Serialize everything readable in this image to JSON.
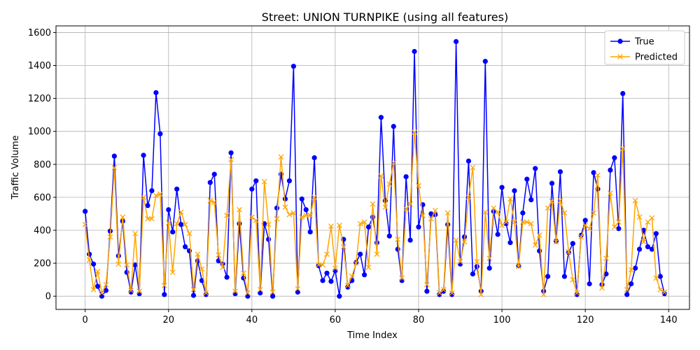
{
  "chart_data": {
    "type": "line",
    "title": "Street: UNION TURNPIKE (using all features)",
    "xlabel": "Time Index",
    "ylabel": "Traffic Volume",
    "xlim": [
      -7,
      145
    ],
    "ylim": [
      -80,
      1640
    ],
    "xticks": [
      0,
      20,
      40,
      60,
      80,
      100,
      120,
      140
    ],
    "yticks": [
      0,
      200,
      400,
      600,
      800,
      1000,
      1200,
      1400,
      1600
    ],
    "grid": true,
    "legend_position": "top-right",
    "series": [
      {
        "name": "True",
        "color": "#0000ff",
        "marker": "circle",
        "values": [
          515,
          255,
          195,
          60,
          0,
          35,
          395,
          850,
          245,
          455,
          145,
          25,
          190,
          15,
          855,
          550,
          640,
          1235,
          985,
          10,
          525,
          390,
          650,
          435,
          300,
          275,
          5,
          215,
          95,
          10,
          690,
          740,
          215,
          195,
          115,
          870,
          15,
          440,
          110,
          0,
          650,
          700,
          20,
          440,
          345,
          0,
          535,
          740,
          590,
          700,
          1395,
          25,
          590,
          525,
          390,
          840,
          185,
          95,
          140,
          90,
          155,
          0,
          345,
          55,
          95,
          205,
          255,
          130,
          420,
          480,
          325,
          1085,
          580,
          365,
          1030,
          285,
          95,
          725,
          340,
          1485,
          420,
          555,
          30,
          500,
          495,
          10,
          30,
          435,
          10,
          1545,
          195,
          360,
          820,
          135,
          180,
          30,
          1425,
          170,
          515,
          375,
          660,
          440,
          325,
          640,
          185,
          505,
          710,
          585,
          775,
          275,
          30,
          120,
          685,
          335,
          755,
          120,
          265,
          320,
          10,
          370,
          460,
          75,
          750,
          650,
          70,
          135,
          765,
          840,
          410,
          1230,
          10,
          75,
          170,
          285,
          400,
          300,
          285,
          380,
          120,
          15
        ]
      },
      {
        "name": "Predicted",
        "color": "#ffa500",
        "marker": "x",
        "values": [
          435,
          220,
          40,
          150,
          20,
          70,
          360,
          780,
          195,
          480,
          190,
          35,
          380,
          30,
          600,
          470,
          470,
          610,
          620,
          65,
          445,
          145,
          440,
          510,
          435,
          380,
          40,
          255,
          165,
          20,
          580,
          570,
          250,
          175,
          490,
          830,
          30,
          525,
          140,
          20,
          480,
          460,
          40,
          695,
          435,
          25,
          470,
          845,
          540,
          495,
          505,
          45,
          480,
          490,
          490,
          600,
          190,
          190,
          255,
          425,
          170,
          430,
          300,
          65,
          120,
          200,
          440,
          450,
          175,
          560,
          255,
          730,
          540,
          680,
          810,
          345,
          110,
          530,
          560,
          995,
          670,
          490,
          70,
          470,
          520,
          20,
          40,
          505,
          20,
          340,
          210,
          330,
          600,
          780,
          210,
          10,
          510,
          230,
          535,
          510,
          430,
          450,
          590,
          450,
          180,
          450,
          450,
          440,
          310,
          370,
          10,
          535,
          575,
          330,
          580,
          505,
          270,
          100,
          20,
          360,
          430,
          410,
          505,
          735,
          50,
          230,
          625,
          420,
          450,
          895,
          40,
          160,
          580,
          480,
          330,
          450,
          475,
          110,
          40,
          25
        ]
      }
    ]
  }
}
